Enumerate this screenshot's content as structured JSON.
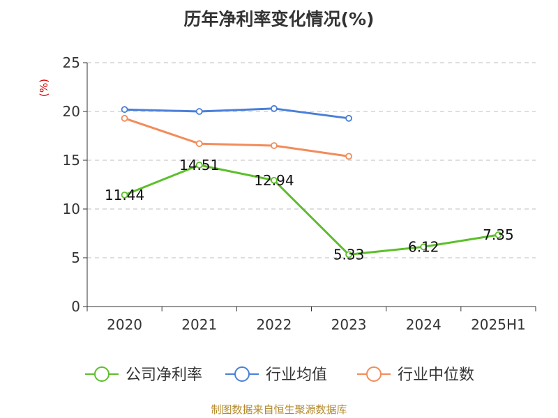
{
  "chart_data": {
    "type": "line",
    "title": "历年净利率变化情况(%)",
    "ylabel": "(%)",
    "xlabel": "",
    "categories": [
      "2020",
      "2021",
      "2022",
      "2023",
      "2024",
      "2025H1"
    ],
    "ylim": [
      0,
      25
    ],
    "yticks": [
      0,
      5,
      10,
      15,
      20,
      25
    ],
    "grid": true,
    "legend_position": "bottom",
    "series": [
      {
        "name": "公司净利率",
        "color": "#5cbf2a",
        "values": [
          11.44,
          14.51,
          12.94,
          5.33,
          6.12,
          7.35
        ],
        "labels": [
          "11.44",
          "14.51",
          "12.94",
          "5.33",
          "6.12",
          "7.35"
        ]
      },
      {
        "name": "行业均值",
        "color": "#4a7fd9",
        "values": [
          20.2,
          20.0,
          20.3,
          19.3,
          null,
          null
        ]
      },
      {
        "name": "行业中位数",
        "color": "#f28c5a",
        "values": [
          19.3,
          16.7,
          16.5,
          15.4,
          null,
          null
        ]
      }
    ],
    "source": "制图数据来自恒生聚源数据库"
  },
  "colors": {
    "axis": "#333333",
    "grid": "#cccccc",
    "ylabel": "#d40000",
    "source": "#b38a2e"
  }
}
